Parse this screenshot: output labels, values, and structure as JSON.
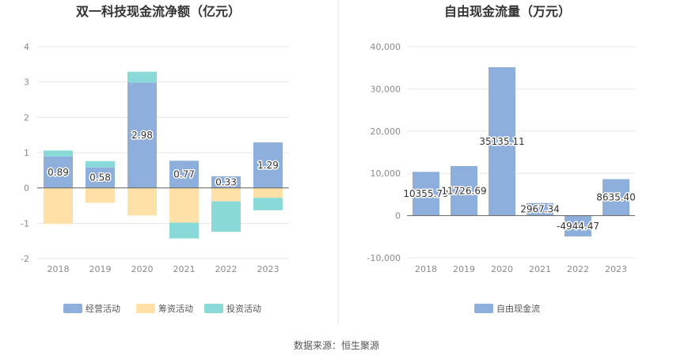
{
  "footer": {
    "source": "数据来源：恒生聚源"
  },
  "colors": {
    "operating": "#8eaedc",
    "financing": "#ffe0a6",
    "investing": "#8ad9d9",
    "fcf": "#8eaedc",
    "axis": "#666666",
    "grid": "#e6e6e6",
    "divider": "#e0e0e0"
  },
  "chart_data": [
    {
      "type": "bar",
      "stacked": true,
      "title": "双一科技现金流净额（亿元）",
      "categories": [
        "2018",
        "2019",
        "2020",
        "2021",
        "2022",
        "2023"
      ],
      "series": [
        {
          "name": "经营活动",
          "values": [
            0.89,
            0.58,
            2.98,
            0.77,
            0.33,
            1.29
          ]
        },
        {
          "name": "筹资活动",
          "values": [
            -1.02,
            -0.42,
            -0.78,
            -0.98,
            -0.38,
            -0.28
          ]
        },
        {
          "name": "投资活动",
          "values": [
            0.17,
            0.18,
            0.31,
            -0.45,
            -0.86,
            -0.35
          ]
        }
      ],
      "data_labels": [
        "0.89",
        "0.58",
        "2.98",
        "0.77",
        "0.33",
        "1.29"
      ],
      "yticks": [
        "4",
        "3",
        "2",
        "1",
        "0",
        "-1",
        "-2"
      ],
      "ylim": [
        -2,
        4
      ],
      "grid": true,
      "legend": "bottom"
    },
    {
      "type": "bar",
      "title": "自由现金流量（万元）",
      "categories": [
        "2018",
        "2019",
        "2020",
        "2021",
        "2022",
        "2023"
      ],
      "series": [
        {
          "name": "自由现金流",
          "values": [
            10355.79,
            11726.69,
            35135.11,
            2967.34,
            -4944.47,
            8635.4
          ]
        }
      ],
      "data_labels": [
        "10355.79",
        "11726.69",
        "35135.11",
        "2967.34",
        "-4944.47",
        "8635.40"
      ],
      "yticks": [
        "40,000",
        "30,000",
        "20,000",
        "10,000",
        "0",
        "-10,000"
      ],
      "ylim": [
        -10000,
        40000
      ],
      "grid": true,
      "legend": "bottom"
    }
  ]
}
